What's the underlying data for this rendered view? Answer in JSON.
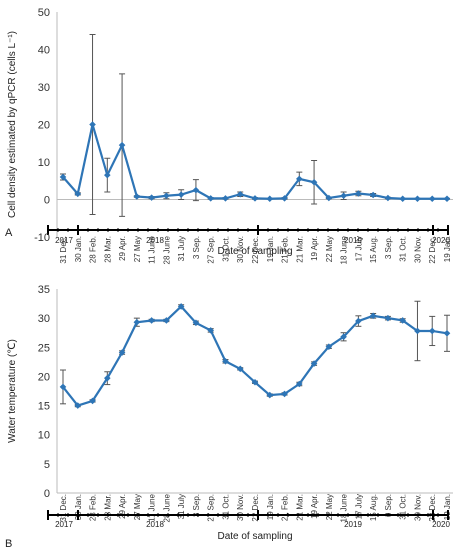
{
  "colors": {
    "series": "#2E75B6",
    "error": "#555555",
    "axis": "#000000"
  },
  "chart_data": [
    {
      "type": "line",
      "panel_label": "A",
      "ylabel": "Cell density estimated by qPCR (cells L⁻¹)",
      "xlabel": "Date of sampling",
      "ylim": [
        -10,
        50
      ],
      "yticks": [
        "-10",
        "0",
        "10",
        "20",
        "30",
        "40",
        "50"
      ],
      "categories": [
        "31 Dec.",
        "30 Jan.",
        "28 Feb.",
        "28 Mar.",
        "29 Apr.",
        "27 May",
        "11 June",
        "28 June",
        "31 July",
        "3 Sep.",
        "27 Sep.",
        "31 Oct.",
        "30 Nov.",
        "22 Dec.",
        "19 Jan.",
        "21 Feb.",
        "21 Mar.",
        "19 Apr.",
        "22 May",
        "18 June",
        "17 July",
        "15 Aug.",
        "3 Sep.",
        "31 Oct.",
        "30 Nov.",
        "22 Dec.",
        "19 Jan."
      ],
      "years": [
        "2017",
        "2018",
        "2019",
        "2020"
      ],
      "series": [
        {
          "values": [
            6,
            1.5,
            20,
            6.5,
            14.5,
            0.8,
            0.5,
            1,
            1.3,
            2.5,
            0.3,
            0.3,
            1.4,
            0.3,
            0.2,
            0.3,
            5.5,
            4.6,
            0.4,
            1,
            1.6,
            1.2,
            0.4,
            0.2,
            0.2,
            0.2,
            0.2
          ],
          "err": [
            0.8,
            0.3,
            24,
            4.5,
            19,
            0.2,
            0.3,
            0.8,
            1.3,
            2.8,
            0.2,
            0.2,
            0.6,
            0.2,
            0.1,
            0.2,
            1.8,
            5.8,
            0.2,
            1,
            0.6,
            0.4,
            0.2,
            0.1,
            0.1,
            0.1,
            0.1
          ]
        }
      ]
    },
    {
      "type": "line",
      "panel_label": "B",
      "ylabel": "Water temperature (℃)",
      "xlabel": "Date of sampling",
      "ylim": [
        0,
        35
      ],
      "yticks": [
        "0",
        "5",
        "10",
        "15",
        "20",
        "25",
        "30",
        "35"
      ],
      "categories": [
        "31 Dec.",
        "30 Jan.",
        "28 Feb.",
        "28 Mar.",
        "29 Apr.",
        "27 May",
        "11 June",
        "28 June",
        "31 July",
        "3 Sep.",
        "27 Sep.",
        "31 Oct.",
        "30 Nov.",
        "22 Dec.",
        "19 Jan.",
        "21 Feb.",
        "21 Mar.",
        "19 Apr.",
        "22 May",
        "18 June",
        "17 July",
        "15 Aug.",
        "3 Sep.",
        "31 Oct.",
        "30 Nov.",
        "22 Dec.",
        "19 Jan."
      ],
      "years": [
        "2017",
        "2018",
        "2019",
        "2020"
      ],
      "series": [
        {
          "values": [
            18.2,
            15,
            15.8,
            19.7,
            24.1,
            29.3,
            29.6,
            29.6,
            32,
            29.2,
            27.9,
            22.6,
            21.3,
            19,
            16.8,
            17,
            18.7,
            22.2,
            25.1,
            26.8,
            29.5,
            30.4,
            30,
            29.6,
            27.8,
            27.8,
            27.4
          ],
          "err": [
            2.9,
            0.2,
            0.2,
            1.1,
            0.3,
            0.7,
            0.2,
            0.2,
            0.3,
            0.3,
            0.3,
            0.3,
            0.2,
            0.2,
            0.2,
            0.2,
            0.3,
            0.3,
            0.3,
            0.7,
            0.9,
            0.4,
            0.3,
            0.3,
            5.1,
            2.5,
            3.1
          ]
        }
      ]
    }
  ]
}
